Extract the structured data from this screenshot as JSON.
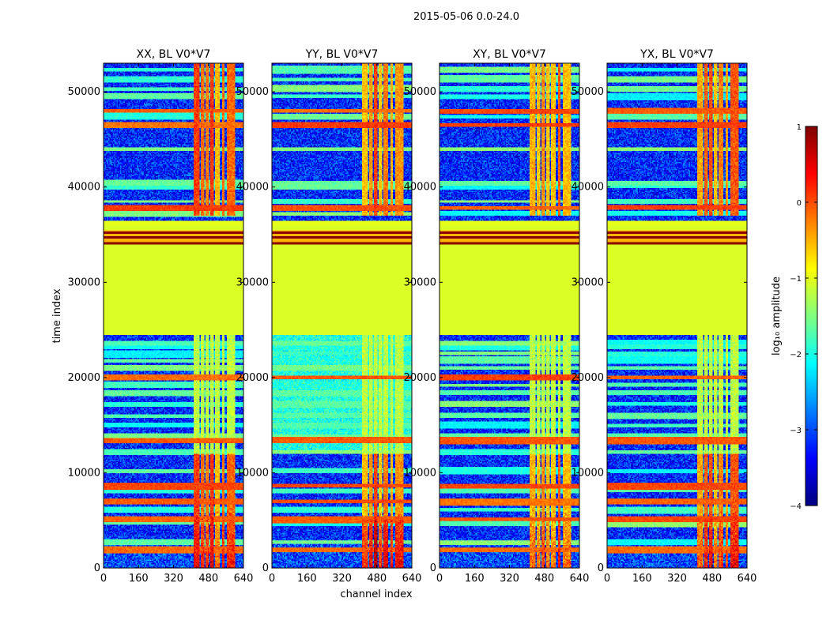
{
  "suptitle": "2015-05-06 0.0-24.0",
  "chart_data": {
    "type": "heatmap",
    "xlabel": "channel index",
    "ylabel": "time index",
    "xlim": [
      0,
      640
    ],
    "ylim": [
      0,
      53000
    ],
    "xticks": [
      "0",
      "160",
      "320",
      "480",
      "640"
    ],
    "yticks": [
      "0",
      "10000",
      "20000",
      "30000",
      "40000",
      "50000"
    ],
    "panels": [
      {
        "title": "XX, BL V0*V7",
        "variant": 0
      },
      {
        "title": "YY, BL V0*V7",
        "variant": 1
      },
      {
        "title": "XY, BL V0*V7",
        "variant": 2
      },
      {
        "title": "YX, BL V0*V7",
        "variant": 3
      }
    ],
    "colorbar": {
      "label": "log₁₀ amplitude",
      "min": -4,
      "max": 1,
      "ticks": [
        "1",
        "0",
        "−1",
        "−2",
        "−3",
        "−4"
      ],
      "colormap": "jet"
    },
    "features": {
      "flagged_band_time": [
        24500,
        36500
      ],
      "saturated_band_time": [
        34000,
        35500
      ],
      "bright_channel_range": [
        410,
        600
      ],
      "bright_time_ranges": [
        [
          0,
          12000
        ],
        [
          37000,
          53000
        ]
      ],
      "stripe_channel_range": [
        410,
        600
      ],
      "mid_striped_time": [
        12000,
        24500
      ]
    }
  }
}
